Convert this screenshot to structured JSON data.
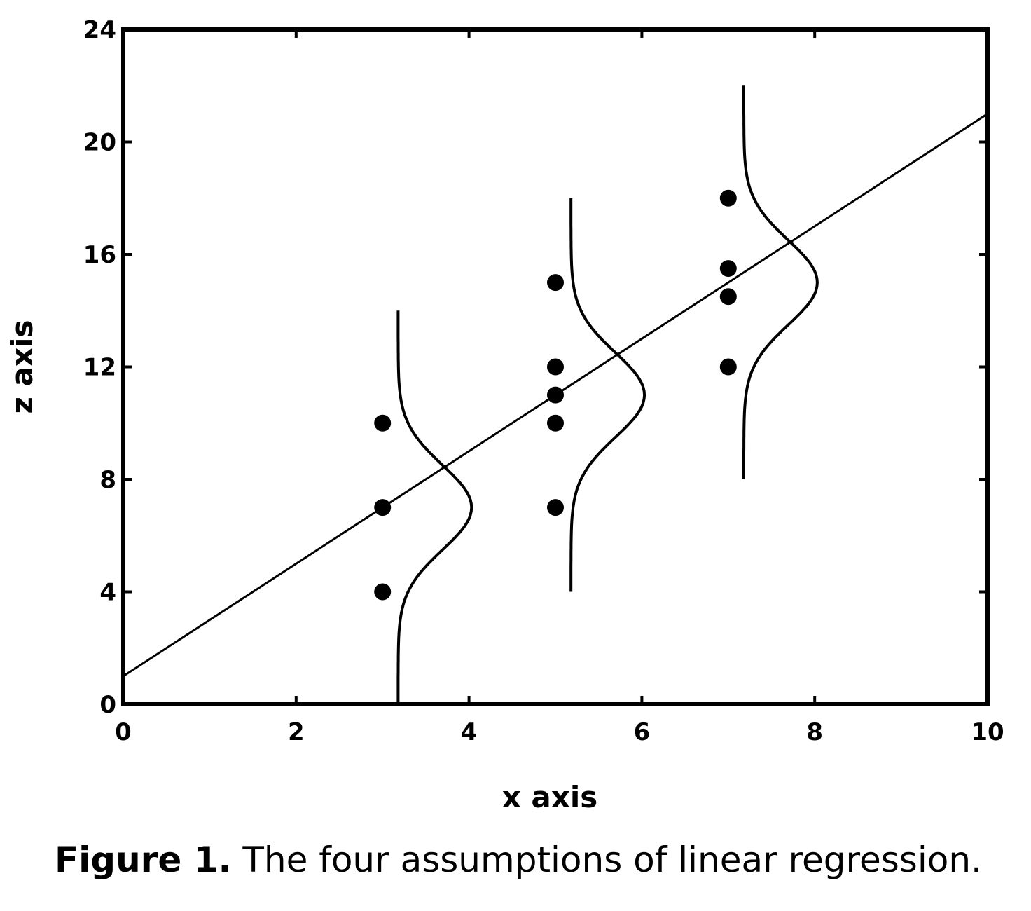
{
  "chart_data": {
    "type": "scatter",
    "xlabel": "x axis",
    "ylabel": "z axis",
    "xlim": [
      0,
      10
    ],
    "ylim": [
      0,
      24
    ],
    "xticks": [
      0,
      2,
      4,
      6,
      8,
      10
    ],
    "yticks": [
      0,
      4,
      8,
      12,
      16,
      20,
      24
    ],
    "grid": false,
    "points": [
      {
        "x": 3,
        "y": 10
      },
      {
        "x": 3,
        "y": 7
      },
      {
        "x": 3,
        "y": 4
      },
      {
        "x": 5,
        "y": 15
      },
      {
        "x": 5,
        "y": 12
      },
      {
        "x": 5,
        "y": 11
      },
      {
        "x": 5,
        "y": 10
      },
      {
        "x": 5,
        "y": 7
      },
      {
        "x": 7,
        "y": 18
      },
      {
        "x": 7,
        "y": 15.5
      },
      {
        "x": 7,
        "y": 14.5
      },
      {
        "x": 7,
        "y": 12
      }
    ],
    "regression_line": {
      "intercept": 1,
      "slope": 2
    },
    "normal_curves": [
      {
        "x_center": 3,
        "mean": 7,
        "sd": 1.5
      },
      {
        "x_center": 5,
        "mean": 11,
        "sd": 1.5
      },
      {
        "x_center": 7,
        "mean": 15,
        "sd": 1.5
      }
    ]
  },
  "caption": {
    "lead": "Figure 1.",
    "text": " The four assumptions of linear regression."
  }
}
